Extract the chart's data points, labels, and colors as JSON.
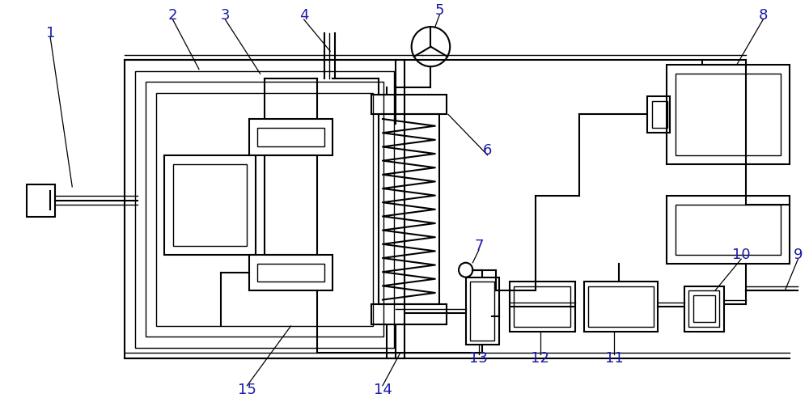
{
  "bg_color": "#ffffff",
  "line_color": "#000000",
  "lw_main": 1.5,
  "lw_thin": 1.0,
  "fig_width": 10.0,
  "fig_height": 5.13,
  "label_color": "#1a1aaa",
  "label_fontsize": 13
}
